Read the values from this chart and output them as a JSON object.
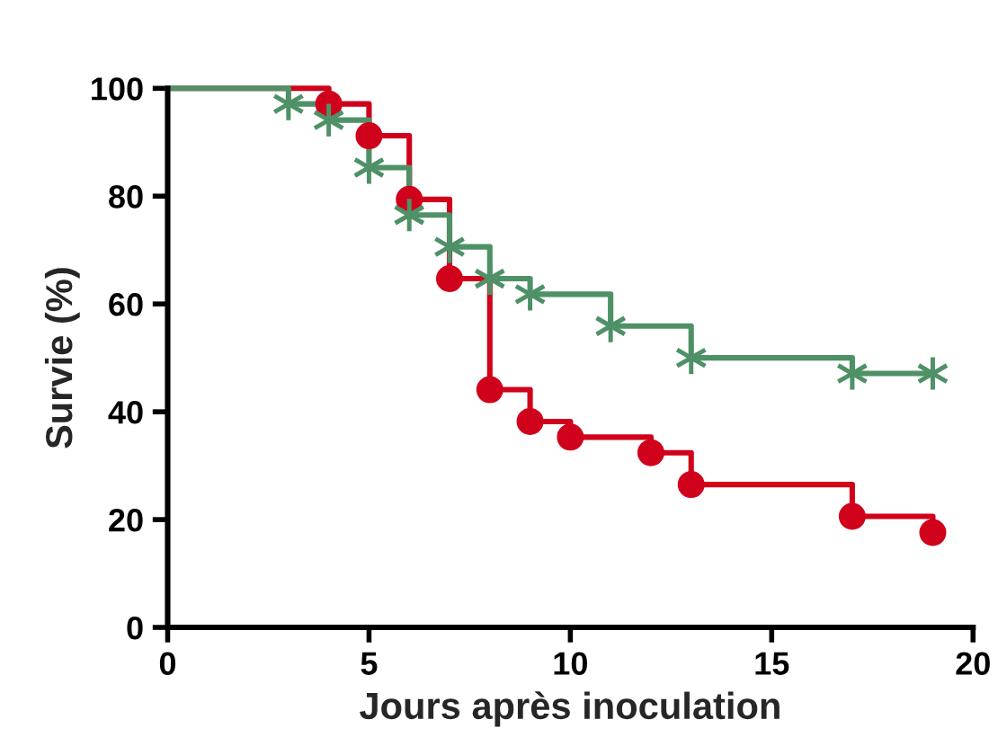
{
  "chart_data": {
    "type": "step",
    "xlabel": "Jours après inoculation",
    "ylabel": "Survie (%)",
    "xlim": [
      0,
      20
    ],
    "xticks": [
      0,
      5,
      10,
      15,
      20
    ],
    "ylim": [
      0,
      100
    ],
    "yticks": [
      0,
      20,
      40,
      60,
      80,
      100
    ],
    "grid": false,
    "legend": false,
    "series": [
      {
        "color": "#d0021b",
        "marker": "circle",
        "x": [
          0,
          4,
          5,
          6,
          7,
          8,
          9,
          10,
          12,
          13,
          17,
          19
        ],
        "values": [
          100,
          97.1,
          91.2,
          79.4,
          64.7,
          44.1,
          38.2,
          35.3,
          32.4,
          26.5,
          20.6,
          17.6
        ]
      },
      {
        "color": "#4f9167",
        "marker": "cross",
        "x": [
          0,
          3,
          4,
          5,
          6,
          7,
          8,
          9,
          11,
          13,
          17,
          19
        ],
        "values": [
          100,
          97.1,
          94.1,
          85.3,
          76.5,
          70.6,
          64.7,
          61.8,
          55.9,
          50,
          47.1,
          47.1
        ]
      }
    ]
  }
}
